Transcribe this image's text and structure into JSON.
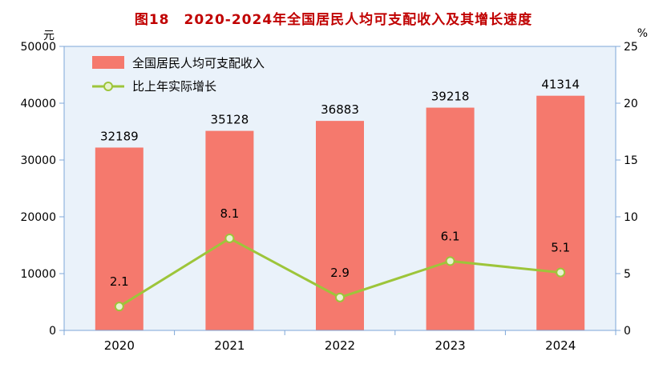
{
  "chart_data": {
    "type": "bar",
    "subtype": "bar-plus-line-dual-axis",
    "title": "图18　2020-2024年全国居民人均可支配收入及其增长速度",
    "left_axis_unit": "元",
    "right_axis_unit": "%",
    "categories": [
      "2020",
      "2021",
      "2022",
      "2023",
      "2024"
    ],
    "series": [
      {
        "name": "全国居民人均可支配收入",
        "type": "bar",
        "axis": "left",
        "values": [
          32189,
          35128,
          36883,
          39218,
          41314
        ]
      },
      {
        "name": "比上年实际增长",
        "type": "line",
        "axis": "right",
        "values": [
          2.1,
          8.1,
          2.9,
          6.1,
          5.1
        ]
      }
    ],
    "left_axis": {
      "min": 0,
      "max": 50000,
      "step": 10000
    },
    "right_axis": {
      "min": 0,
      "max": 25,
      "step": 5
    },
    "grid": false,
    "legend_position": "top-left-inside",
    "colors": {
      "title": "#c00000",
      "bar": "#f5796d",
      "line": "#9dc53a",
      "marker_fill": "#e8f3cf",
      "plot_bg": "#eaf2fa",
      "axis": "#7da7d8",
      "label": "#000000"
    }
  }
}
